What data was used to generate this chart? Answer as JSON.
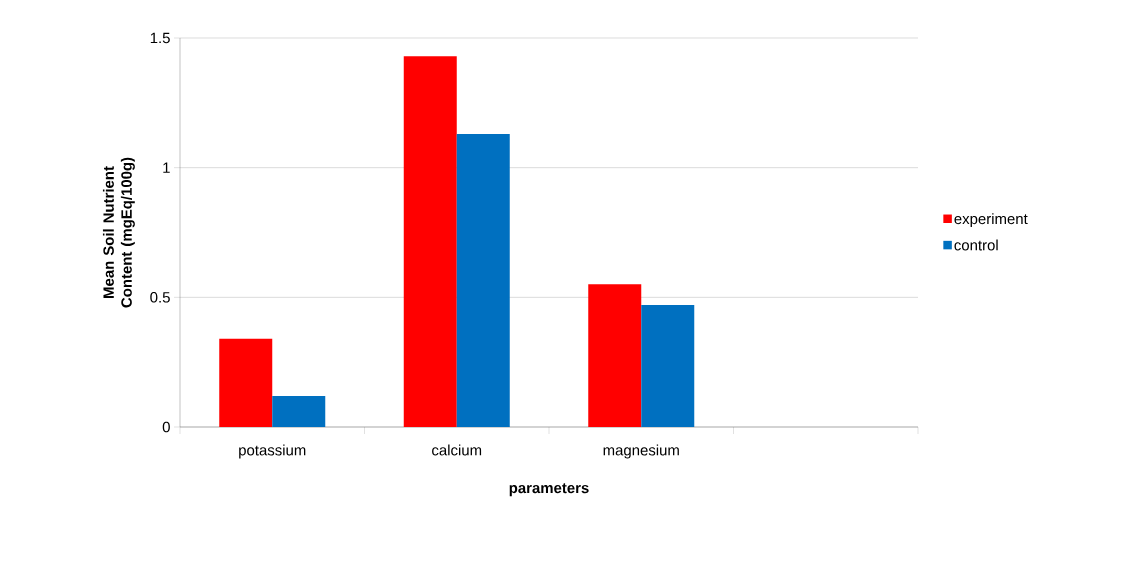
{
  "chart_data": {
    "type": "bar",
    "xlabel": "parameters",
    "ylabel": "Mean Soil Nutrient Content (mgEq/100g)",
    "categories": [
      "potassium",
      "calcium",
      "magnesium",
      null
    ],
    "series": [
      {
        "name": "experiment",
        "color": "#ff0000",
        "values": [
          0.34,
          1.43,
          0.55,
          null
        ]
      },
      {
        "name": "control",
        "color": "#0070c0",
        "values": [
          0.12,
          1.13,
          0.47,
          null
        ]
      }
    ],
    "ylim": [
      0,
      1.5
    ],
    "yticks": [
      0,
      0.5,
      1,
      1.5
    ],
    "grid": "y",
    "legend": "right"
  }
}
